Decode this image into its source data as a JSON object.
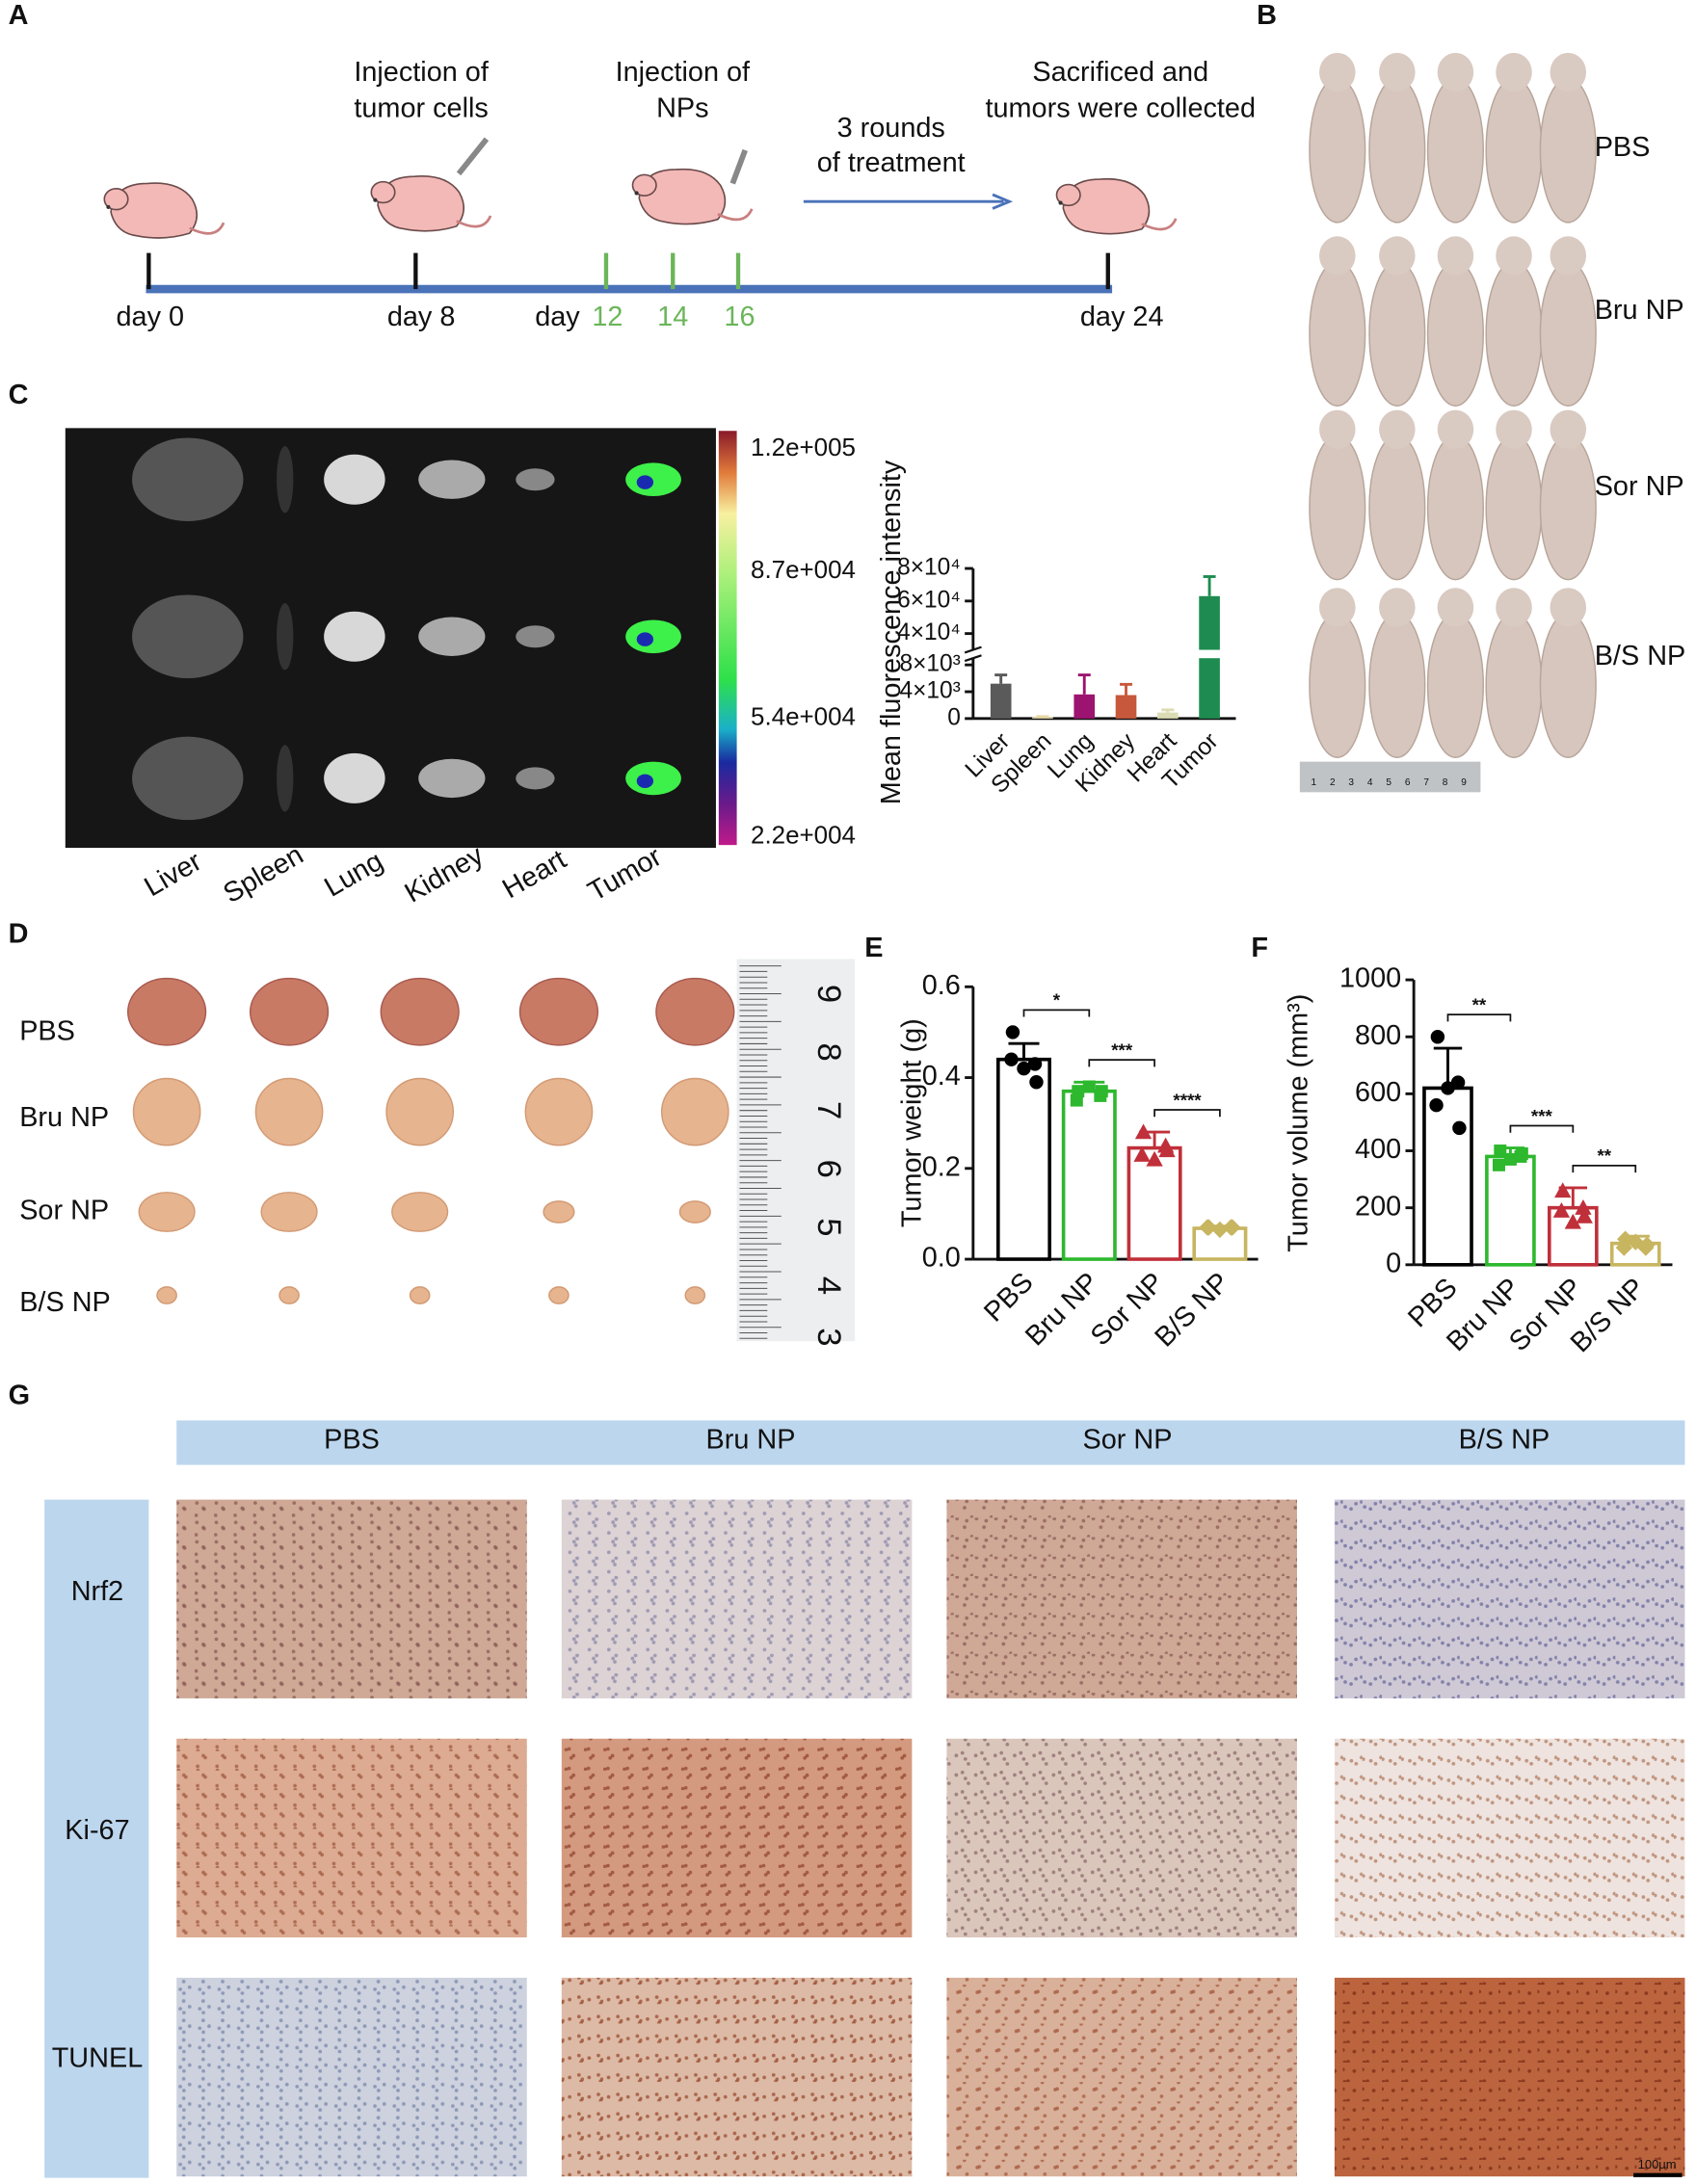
{
  "panel_labels": [
    "A",
    "B",
    "C",
    "D",
    "E",
    "F",
    "G"
  ],
  "timeline": {
    "events": [
      {
        "lines": [
          "Injection of",
          "tumor cells"
        ]
      },
      {
        "lines": [
          "Injection of",
          "NPs"
        ]
      },
      {
        "lines": [
          "3 rounds",
          "of treatment"
        ]
      },
      {
        "lines": [
          "Sacrificed and",
          "tumors were collected"
        ]
      }
    ],
    "days": [
      "day 0",
      "day 8",
      "day",
      "12",
      "14",
      "16",
      "day 24"
    ]
  },
  "mice_photo": {
    "groups": [
      "PBS",
      "Bru NP",
      "Sor NP",
      "B/S NP"
    ],
    "ruler": [
      "1",
      "2",
      "3",
      "4",
      "5",
      "6",
      "7",
      "8",
      "9"
    ]
  },
  "imaging": {
    "colorbar": [
      "1.2e+005",
      "8.7e+004",
      "5.4e+004",
      "2.2e+004"
    ],
    "organs": [
      "Liver",
      "Spleen",
      "Lung",
      "Kidney",
      "Heart",
      "Tumor"
    ]
  },
  "tumor_photo": {
    "groups": [
      "PBS",
      "Bru NP",
      "Sor NP",
      "B/S NP"
    ],
    "ruler": [
      "9",
      "8",
      "7",
      "6",
      "5",
      "4",
      "3"
    ]
  },
  "ihc": {
    "groups": [
      "PBS",
      "Bru NP",
      "Sor NP",
      "B/S NP"
    ],
    "stains": [
      "Nrf2",
      "Ki-67",
      "TUNEL"
    ],
    "scale_bar": "100μm"
  },
  "chart_data": [
    {
      "type": "bar",
      "y_label": "Mean fluorescence intensity",
      "categories": [
        "Liver",
        "Spleen",
        "Lung",
        "Kidney",
        "Heart",
        "Tumor"
      ],
      "values": [
        5200,
        200,
        3600,
        3500,
        900,
        63000
      ],
      "errors": [
        1300,
        100,
        2900,
        1600,
        400,
        12000
      ],
      "colors": [
        "#5a5a5a",
        "#e6d9a8",
        "#9c1470",
        "#c8583c",
        "#dcdcb4",
        "#1e8c50"
      ],
      "ylim": [
        0,
        80000
      ],
      "ybreak": [
        9000,
        30000
      ],
      "yticks": [
        0,
        {
          "value": 4000,
          "label": "4×10³"
        },
        {
          "value": 8000,
          "label": "8×10³"
        },
        {
          "value": 40000,
          "label": "4×10⁴"
        },
        {
          "value": 60000,
          "label": "6×10⁴"
        },
        {
          "value": 80000,
          "label": "8×10⁴"
        }
      ]
    },
    {
      "type": "bar",
      "hollow": true,
      "y_label": "Tumor weight (g)",
      "categories": [
        "PBS",
        "Bru NP",
        "Sor NP",
        "B/S NP"
      ],
      "values": [
        0.44,
        0.37,
        0.245,
        0.068
      ],
      "errors": [
        0.035,
        0.02,
        0.035,
        0.005
      ],
      "points": [
        [
          0.5,
          0.43,
          0.42,
          0.44,
          0.39
        ],
        [
          0.37,
          0.36,
          0.38,
          0.35,
          0.37
        ],
        [
          0.28,
          0.25,
          0.22,
          0.23,
          0.24
        ],
        [
          0.07,
          0.07,
          0.065,
          0.07,
          0.07
        ]
      ],
      "colors": [
        "#000000",
        "#2db82d",
        "#c0303a",
        "#c8b560"
      ],
      "markers": [
        "circle",
        "square",
        "triangle",
        "diamond"
      ],
      "annotations": [
        "*",
        "***",
        "****"
      ],
      "ylim": [
        0,
        0.6
      ],
      "yticks": [
        {
          "value": 0,
          "label": "0.0"
        },
        0.2,
        0.4,
        0.6
      ]
    },
    {
      "type": "bar",
      "hollow": true,
      "y_label": "Tumor volume (mm³)",
      "categories": [
        "PBS",
        "Bru NP",
        "Sor NP",
        "B/S NP"
      ],
      "values": [
        620,
        380,
        200,
        75
      ],
      "errors": [
        140,
        30,
        70,
        25
      ],
      "points": [
        [
          800,
          640,
          620,
          560,
          480
        ],
        [
          400,
          380,
          370,
          350,
          390
        ],
        [
          260,
          200,
          150,
          190,
          170
        ],
        [
          90,
          60,
          80,
          60,
          70
        ]
      ],
      "colors": [
        "#000000",
        "#2db82d",
        "#c0303a",
        "#c8b560"
      ],
      "markers": [
        "circle",
        "square",
        "triangle",
        "diamond"
      ],
      "annotations": [
        "**",
        "***",
        "**"
      ],
      "ylim": [
        0,
        1000
      ],
      "yticks": [
        0,
        200,
        400,
        600,
        800,
        1000
      ]
    }
  ]
}
